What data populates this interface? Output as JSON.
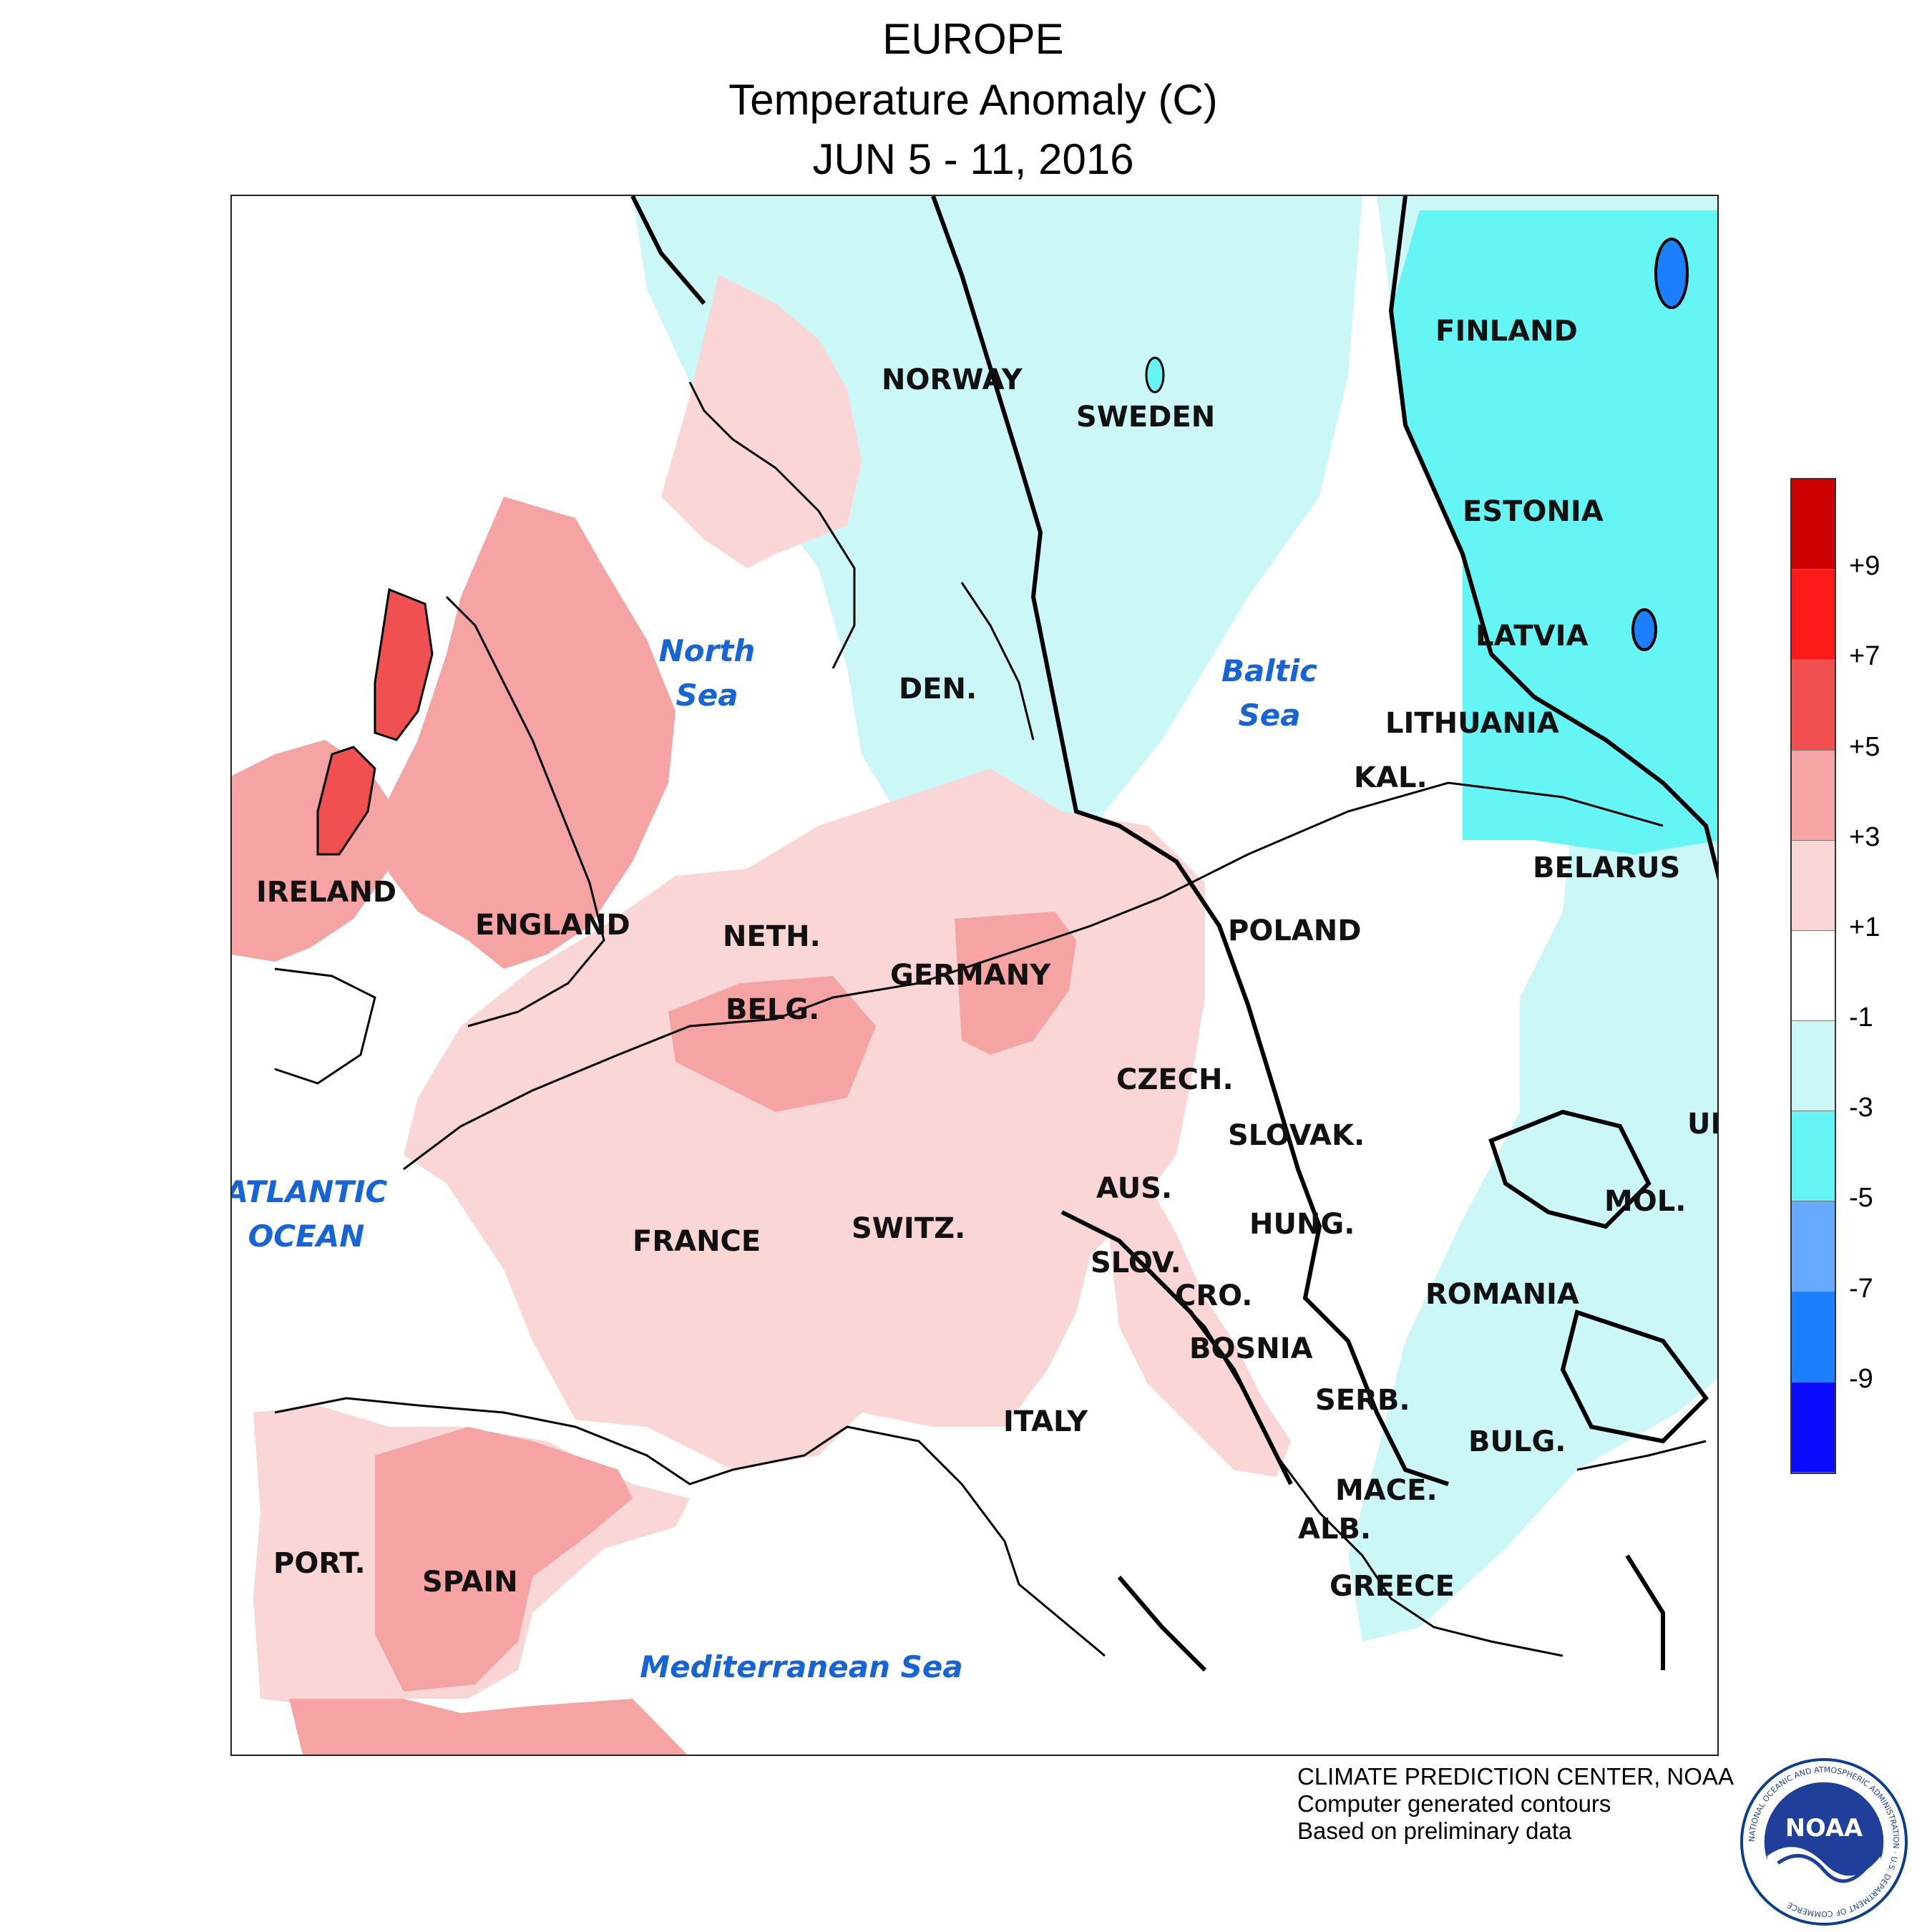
{
  "header": {
    "title": "EUROPE",
    "subtitle": "Temperature Anomaly (C)",
    "date_range": "JUN 5 - 11, 2016"
  },
  "map": {
    "countries": [
      "NORWAY",
      "SWEDEN",
      "FINLAND",
      "ESTONIA",
      "LATVIA",
      "LITHUANIA",
      "KAL.",
      "BELARUS",
      "DEN.",
      "IRELAND",
      "ENGLAND",
      "NETH.",
      "BELG.",
      "GERMANY",
      "POLAND",
      "CZECH.",
      "SLOVAK.",
      "UK",
      "AUS.",
      "HUNG.",
      "MOL.",
      "FRANCE",
      "SWITZ.",
      "SLOV.",
      "CRO.",
      "ROMANIA",
      "BOSNIA",
      "SERB.",
      "ITALY",
      "BULG.",
      "MACE.",
      "ALB.",
      "GREECE",
      "PORT.",
      "SPAIN"
    ],
    "seas": [
      {
        "line1": "North",
        "line2": "Sea"
      },
      {
        "line1": "Baltic",
        "line2": "Sea"
      },
      {
        "line1": "ATLANTIC",
        "line2": "OCEAN"
      },
      {
        "line1": "Mediterranean Sea",
        "line2": ""
      }
    ]
  },
  "legend": {
    "bins": [
      {
        "range": "above +9",
        "color": "#cc0000"
      },
      {
        "range": "+7 to +9",
        "color": "#ff1a1a"
      },
      {
        "range": "+5 to +7",
        "color": "#f05050"
      },
      {
        "range": "+3 to +5",
        "color": "#f5a3a3"
      },
      {
        "range": "+1 to +3",
        "color": "#fad6d6"
      },
      {
        "range": "-1 to +1",
        "color": "#ffffff"
      },
      {
        "range": "-3 to -1",
        "color": "#ccf7f7"
      },
      {
        "range": "-5 to -3",
        "color": "#66f5f5"
      },
      {
        "range": "-7 to -5",
        "color": "#66aaff"
      },
      {
        "range": "-9 to -7",
        "color": "#1a80ff"
      },
      {
        "range": "below -9",
        "color": "#0a0aff"
      }
    ],
    "ticks": [
      "+9",
      "+7",
      "+5",
      "+3",
      "+1",
      "-1",
      "-3",
      "-5",
      "-7",
      "-9"
    ]
  },
  "credits": {
    "line1": "CLIMATE PREDICTION CENTER, NOAA",
    "line2": "Computer generated contours",
    "line3": "Based on preliminary data"
  },
  "logo": {
    "text": "NOAA",
    "ring_text": "NATIONAL OCEANIC AND ATMOSPHERIC ADMINISTRATION · U.S. DEPARTMENT OF COMMERCE",
    "icon": "noaa-bird-logo"
  }
}
